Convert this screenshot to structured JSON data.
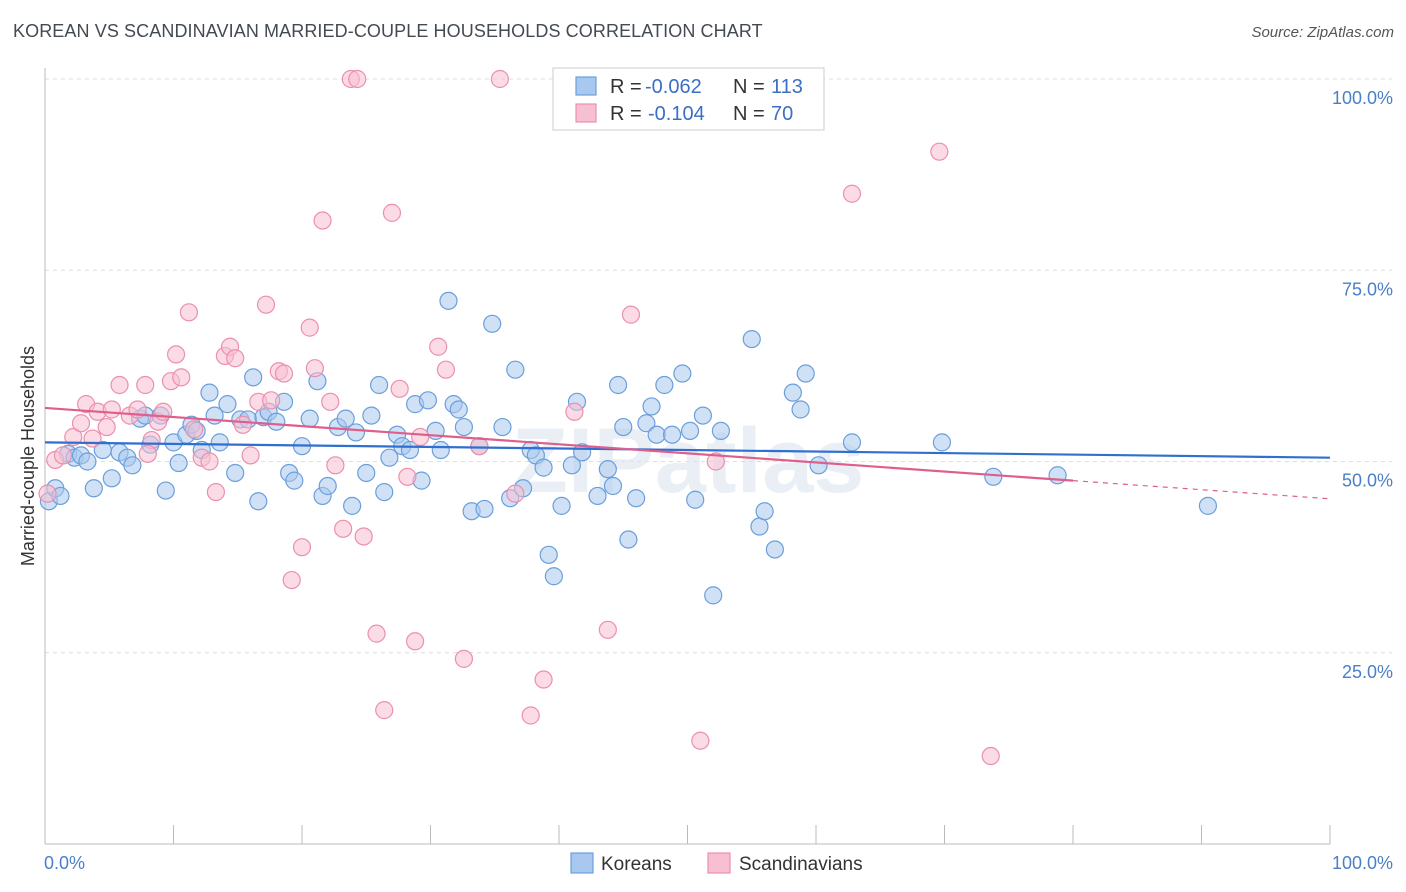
{
  "title": "KOREAN VS SCANDINAVIAN MARRIED-COUPLE HOUSEHOLDS CORRELATION CHART",
  "source": "Source: ZipAtlas.com",
  "watermark": "ZIPatlas",
  "chart_data": {
    "type": "scatter",
    "title": "KOREAN VS SCANDINAVIAN MARRIED-COUPLE HOUSEHOLDS CORRELATION CHART",
    "xlabel": "",
    "ylabel": "Married-couple Households",
    "xlim": [
      0,
      100
    ],
    "ylim": [
      0,
      100
    ],
    "x_tick_labels": [
      "0.0%",
      "100.0%"
    ],
    "y_ticks": [
      25,
      50,
      75,
      100
    ],
    "y_tick_labels": [
      "25.0%",
      "50.0%",
      "75.0%",
      "100.0%"
    ],
    "grid": true,
    "legend_position": "top-center",
    "legend": [
      {
        "r_label": "R =",
        "r_value": "-0.062",
        "n_label": "N =",
        "n_value": "113"
      },
      {
        "r_label": "R =",
        "r_value": "-0.104",
        "n_label": "N =",
        "n_value": "70"
      }
    ],
    "series": [
      {
        "name": "Koreans",
        "color": "#6a9fdc",
        "fill": "#a9c8ef",
        "line_color": "#2f6fcf",
        "trend": {
          "x": [
            0,
            100
          ],
          "y": [
            52.5,
            50.5
          ]
        },
        "points": [
          [
            0.3,
            44.8
          ],
          [
            0.8,
            46.5
          ],
          [
            1.2,
            45.5
          ],
          [
            1.8,
            51
          ],
          [
            2.3,
            50.5
          ],
          [
            2.8,
            50.8
          ],
          [
            3.3,
            50
          ],
          [
            3.8,
            46.5
          ],
          [
            4.5,
            51.5
          ],
          [
            5.2,
            47.8
          ],
          [
            5.8,
            51.2
          ],
          [
            6.4,
            50.5
          ],
          [
            6.8,
            49.5
          ],
          [
            7.4,
            55.6
          ],
          [
            7.8,
            56
          ],
          [
            8.2,
            52.2
          ],
          [
            9,
            56
          ],
          [
            9.4,
            46.2
          ],
          [
            10,
            52.5
          ],
          [
            10.4,
            49.8
          ],
          [
            11,
            53.5
          ],
          [
            11.4,
            54.8
          ],
          [
            11.8,
            54
          ],
          [
            12.2,
            51.5
          ],
          [
            12.8,
            59
          ],
          [
            13.2,
            56
          ],
          [
            13.6,
            52.5
          ],
          [
            14.2,
            57.5
          ],
          [
            14.8,
            48.5
          ],
          [
            15.2,
            55.5
          ],
          [
            15.8,
            55.5
          ],
          [
            16.2,
            61
          ],
          [
            16.6,
            44.8
          ],
          [
            17,
            55.8
          ],
          [
            17.4,
            56.5
          ],
          [
            18,
            55.2
          ],
          [
            18.6,
            57.8
          ],
          [
            19,
            48.5
          ],
          [
            19.4,
            47.5
          ],
          [
            20,
            52
          ],
          [
            20.6,
            55.6
          ],
          [
            21.2,
            60.5
          ],
          [
            21.6,
            45.5
          ],
          [
            22,
            46.8
          ],
          [
            22.8,
            54.5
          ],
          [
            23.4,
            55.6
          ],
          [
            23.9,
            44.2
          ],
          [
            24.2,
            53.8
          ],
          [
            25,
            48.5
          ],
          [
            25.4,
            56
          ],
          [
            26,
            60
          ],
          [
            26.4,
            46
          ],
          [
            26.8,
            50.5
          ],
          [
            27.4,
            53.5
          ],
          [
            27.8,
            52
          ],
          [
            28.4,
            51.5
          ],
          [
            28.8,
            57.5
          ],
          [
            29.3,
            47.5
          ],
          [
            29.8,
            58
          ],
          [
            30.4,
            54
          ],
          [
            30.8,
            51.5
          ],
          [
            31.4,
            71
          ],
          [
            31.8,
            57.5
          ],
          [
            32.2,
            56.8
          ],
          [
            32.6,
            54.5
          ],
          [
            33.2,
            43.5
          ],
          [
            33.8,
            52
          ],
          [
            34.2,
            43.8
          ],
          [
            34.8,
            68
          ],
          [
            35.6,
            54.5
          ],
          [
            36.2,
            45.2
          ],
          [
            36.6,
            62
          ],
          [
            37.2,
            46.5
          ],
          [
            37.8,
            51.5
          ],
          [
            38.2,
            50.8
          ],
          [
            38.8,
            49.2
          ],
          [
            39.2,
            37.8
          ],
          [
            39.6,
            35
          ],
          [
            40.2,
            44.2
          ],
          [
            41,
            49.5
          ],
          [
            41.4,
            57.8
          ],
          [
            41.8,
            51.2
          ],
          [
            43,
            45.5
          ],
          [
            43.8,
            49
          ],
          [
            44.2,
            46.8
          ],
          [
            44.6,
            60
          ],
          [
            45,
            54.5
          ],
          [
            45.4,
            39.8
          ],
          [
            46,
            45.2
          ],
          [
            46.8,
            55
          ],
          [
            47.2,
            57.2
          ],
          [
            47.6,
            53.5
          ],
          [
            48.2,
            60
          ],
          [
            48.8,
            53.5
          ],
          [
            49.6,
            61.5
          ],
          [
            50.2,
            54
          ],
          [
            50.6,
            45
          ],
          [
            51.2,
            56
          ],
          [
            52,
            32.5
          ],
          [
            52.6,
            54
          ],
          [
            55,
            66
          ],
          [
            55.6,
            41.5
          ],
          [
            56,
            43.5
          ],
          [
            56.8,
            38.5
          ],
          [
            58.2,
            59
          ],
          [
            58.8,
            56.8
          ],
          [
            59.2,
            61.5
          ],
          [
            60.2,
            49.5
          ],
          [
            62.8,
            52.5
          ],
          [
            69.8,
            52.5
          ],
          [
            73.8,
            48
          ],
          [
            78.8,
            48.2
          ],
          [
            90.5,
            44.2
          ]
        ]
      },
      {
        "name": "Scandinavians",
        "color": "#ec8fad",
        "fill": "#f7c0d2",
        "line_color": "#de5e8c",
        "trend": {
          "x": [
            0,
            80
          ],
          "y": [
            57,
            47.5
          ]
        },
        "points": [
          [
            0.2,
            45.8
          ],
          [
            0.8,
            50.2
          ],
          [
            1.4,
            50.8
          ],
          [
            2.2,
            53.2
          ],
          [
            2.8,
            55
          ],
          [
            3.2,
            57.5
          ],
          [
            3.7,
            53
          ],
          [
            4.1,
            56.5
          ],
          [
            4.8,
            54.5
          ],
          [
            5.2,
            56.8
          ],
          [
            5.8,
            60
          ],
          [
            6.6,
            56
          ],
          [
            7.2,
            56.8
          ],
          [
            7.8,
            60
          ],
          [
            8.3,
            52.8
          ],
          [
            8.8,
            55.2
          ],
          [
            9.2,
            56.5
          ],
          [
            9.8,
            60.5
          ],
          [
            10.2,
            64
          ],
          [
            10.6,
            61
          ],
          [
            11.2,
            69.5
          ],
          [
            11.6,
            54.2
          ],
          [
            12.2,
            50.5
          ],
          [
            12.8,
            50
          ],
          [
            13.3,
            46
          ],
          [
            14,
            63.8
          ],
          [
            14.4,
            65
          ],
          [
            14.8,
            63.5
          ],
          [
            15.4,
            54.8
          ],
          [
            16,
            50.8
          ],
          [
            16.6,
            57.8
          ],
          [
            17.2,
            70.5
          ],
          [
            17.6,
            58
          ],
          [
            18.2,
            61.8
          ],
          [
            18.6,
            61.5
          ],
          [
            19.2,
            34.5
          ],
          [
            20,
            38.8
          ],
          [
            20.6,
            67.5
          ],
          [
            21,
            62.2
          ],
          [
            21.6,
            81.5
          ],
          [
            22.2,
            57.8
          ],
          [
            22.6,
            49.5
          ],
          [
            23.2,
            41.2
          ],
          [
            23.8,
            100
          ],
          [
            24.3,
            100
          ],
          [
            24.8,
            40.2
          ],
          [
            25.8,
            27.5
          ],
          [
            26.4,
            17.5
          ],
          [
            27,
            82.5
          ],
          [
            27.6,
            59.5
          ],
          [
            28.2,
            48
          ],
          [
            28.8,
            26.5
          ],
          [
            30.6,
            65
          ],
          [
            31.2,
            62
          ],
          [
            32.6,
            24.2
          ],
          [
            35.4,
            100
          ],
          [
            36.6,
            45.8
          ],
          [
            37.8,
            16.8
          ],
          [
            38.8,
            21.5
          ],
          [
            43.8,
            28
          ],
          [
            45.6,
            69.2
          ],
          [
            51,
            13.5
          ],
          [
            52.2,
            50
          ],
          [
            62.8,
            85
          ],
          [
            69.6,
            90.5
          ],
          [
            73.6,
            11.5
          ],
          [
            41.2,
            56.5
          ],
          [
            29.2,
            53.2
          ],
          [
            33.8,
            52
          ],
          [
            8,
            51
          ]
        ]
      }
    ]
  },
  "bottom_legend": [
    "Koreans",
    "Scandinavians"
  ]
}
